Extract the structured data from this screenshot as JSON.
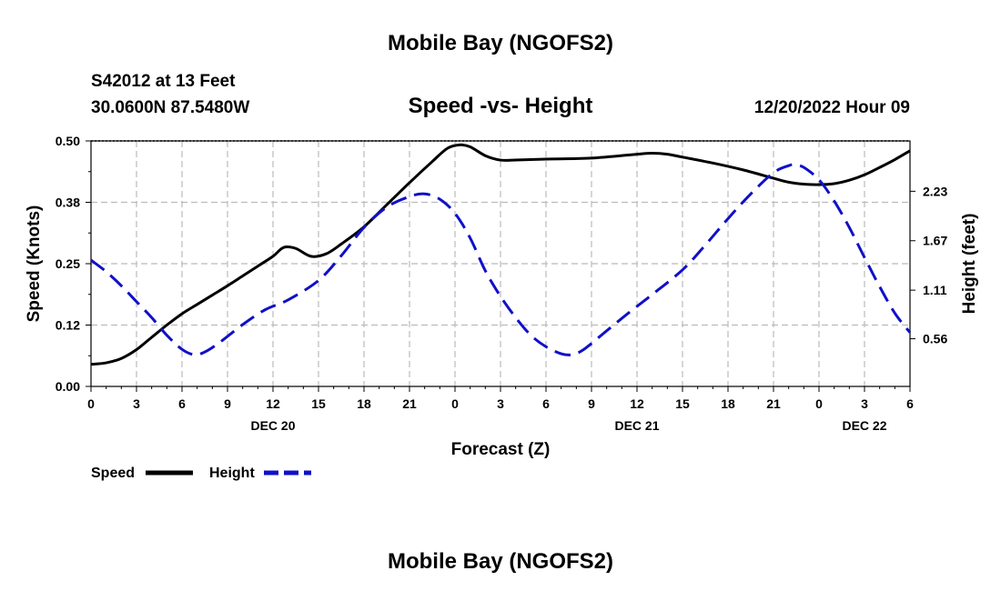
{
  "header": {
    "title": "Mobile Bay (NGOFS2)",
    "station": "S42012 at 13 Feet",
    "coords": "30.0600N  87.5480W",
    "subtitle": "Speed -vs- Height",
    "timestamp": "12/20/2022 Hour 09"
  },
  "footer": {
    "title": "Mobile Bay (NGOFS2)"
  },
  "legend": {
    "speed_label": "Speed",
    "height_label": "Height"
  },
  "colors": {
    "speed": "#000000",
    "height": "#1010c8",
    "grid": "#bbbbbb"
  },
  "chart_data": {
    "type": "line",
    "xlabel": "Forecast (Z)",
    "ylabel": "Speed (Knots)",
    "y2label": "Height (feet)",
    "xlim": [
      0,
      54
    ],
    "ylim": [
      0,
      0.5
    ],
    "y2lim": [
      0.02,
      2.8
    ],
    "x_ticks": [
      0,
      3,
      6,
      9,
      12,
      15,
      18,
      21,
      24,
      27,
      30,
      33,
      36,
      39,
      42,
      45,
      48,
      51,
      54
    ],
    "x_tick_labels": [
      "0",
      "3",
      "6",
      "9",
      "12",
      "15",
      "18",
      "21",
      "0",
      "3",
      "6",
      "9",
      "12",
      "15",
      "18",
      "21",
      "0",
      "3",
      "6"
    ],
    "date_labels": [
      {
        "x": 12,
        "label": "DEC 20"
      },
      {
        "x": 36,
        "label": "DEC 21"
      },
      {
        "x": 51,
        "label": "DEC 22"
      }
    ],
    "y_ticks": [
      0,
      0.125,
      0.25,
      0.375,
      0.5
    ],
    "y_tick_labels": [
      "0.00",
      "0.12",
      "0.25",
      "0.38",
      "0.50"
    ],
    "y2_ticks": [
      0.56,
      1.11,
      1.67,
      2.23
    ],
    "y2_tick_labels": [
      "0.56",
      "1.11",
      "1.67",
      "2.23"
    ],
    "grid": true,
    "legend_position": "bottom-left",
    "series": [
      {
        "name": "Speed",
        "axis": "left",
        "style": "solid",
        "x": [
          0,
          1,
          2,
          3,
          4,
          5,
          6,
          7,
          8,
          9,
          10,
          11,
          12,
          12.7,
          13.5,
          14.5,
          15.5,
          16.5,
          18,
          19.5,
          21,
          22.5,
          23.5,
          24.3,
          25,
          26,
          27,
          28,
          30,
          33,
          36,
          37,
          38,
          39,
          41,
          43,
          45,
          46,
          47,
          48,
          49,
          50,
          51,
          52,
          53,
          54
        ],
        "y": [
          0.045,
          0.048,
          0.057,
          0.075,
          0.1,
          0.125,
          0.148,
          0.167,
          0.186,
          0.205,
          0.225,
          0.245,
          0.265,
          0.283,
          0.281,
          0.265,
          0.27,
          0.29,
          0.325,
          0.37,
          0.415,
          0.458,
          0.485,
          0.492,
          0.488,
          0.47,
          0.461,
          0.461,
          0.463,
          0.465,
          0.473,
          0.475,
          0.473,
          0.467,
          0.455,
          0.441,
          0.424,
          0.416,
          0.412,
          0.411,
          0.413,
          0.42,
          0.431,
          0.446,
          0.462,
          0.48
        ]
      },
      {
        "name": "Height",
        "axis": "right",
        "style": "dashed",
        "x": [
          0,
          1,
          2,
          3,
          4,
          5,
          6,
          6.8,
          7.5,
          8.5,
          10,
          11.5,
          13,
          15,
          16.5,
          18,
          19.5,
          21,
          22,
          23,
          24,
          25,
          26,
          27,
          28,
          29,
          30,
          31,
          31.7,
          32.5,
          34,
          35.5,
          37,
          39,
          40.5,
          42,
          43.5,
          45,
          46,
          46.4,
          47,
          48,
          49,
          50,
          51,
          52,
          53,
          54
        ],
        "y": [
          1.45,
          1.32,
          1.16,
          0.98,
          0.8,
          0.6,
          0.44,
          0.38,
          0.41,
          0.52,
          0.72,
          0.89,
          1.0,
          1.22,
          1.5,
          1.82,
          2.05,
          2.17,
          2.2,
          2.14,
          1.98,
          1.7,
          1.33,
          1.04,
          0.8,
          0.6,
          0.47,
          0.39,
          0.38,
          0.44,
          0.65,
          0.86,
          1.06,
          1.34,
          1.62,
          1.92,
          2.2,
          2.44,
          2.52,
          2.53,
          2.5,
          2.36,
          2.12,
          1.82,
          1.48,
          1.15,
          0.85,
          0.63
        ]
      }
    ]
  }
}
